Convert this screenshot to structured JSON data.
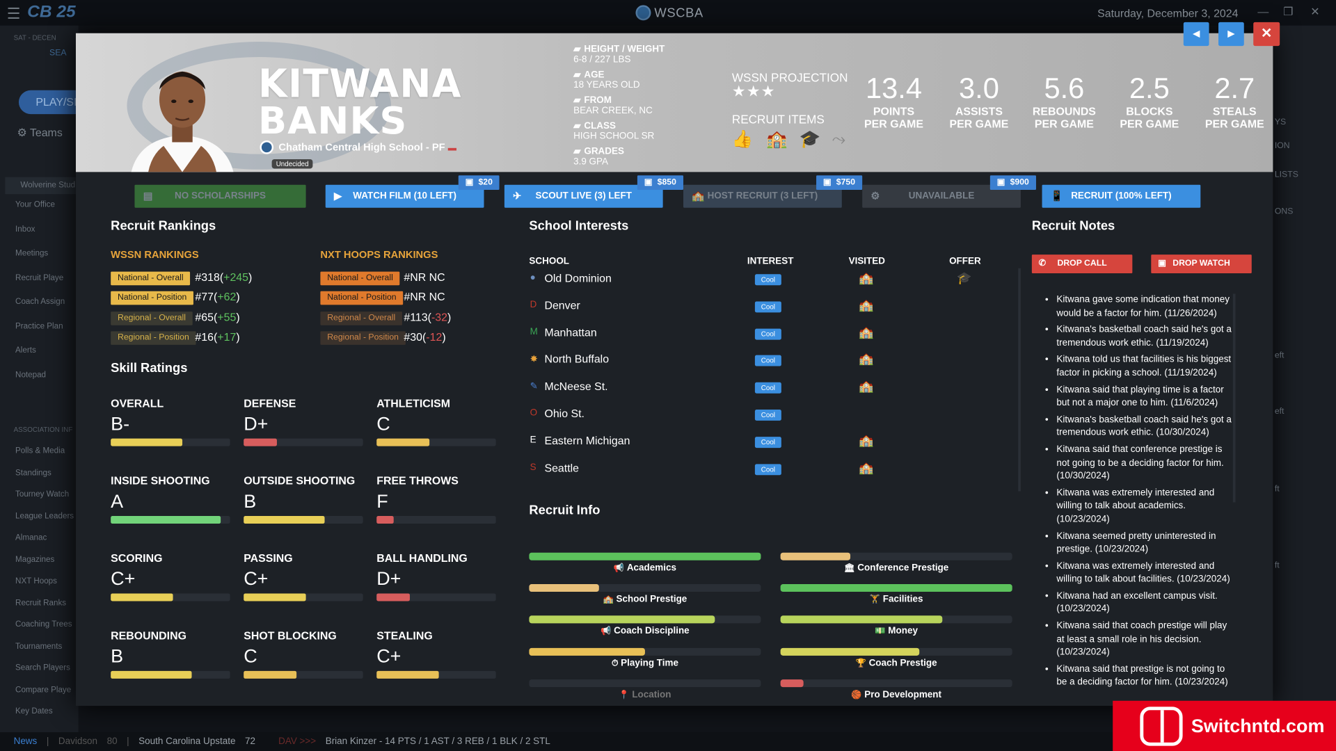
{
  "window": {
    "title": "WSCBA",
    "date": "Saturday, December 3, 2024",
    "game_logo": "25"
  },
  "sidebar": {
    "play_label": "PLAY/SI",
    "teams_label": "Teams",
    "team_name": "Wolverine Stud",
    "date_line": "SAT - DECEN",
    "search_line": "SEA",
    "items": [
      "Your Office",
      "Inbox",
      "Meetings",
      "Recruit Playe",
      "Coach Assign",
      "Practice Plan",
      "Alerts",
      "Notepad"
    ],
    "section_title": "ASSOCIATION INF",
    "assoc_items": [
      "Polls & Media",
      "Standings",
      "Tourney Watch",
      "League Leaders",
      "Almanac",
      "Magazines",
      "NXT Hoops",
      "Recruit Ranks",
      "Coaching Trees",
      "Tournaments",
      "Search Players",
      "Compare Playe",
      "Key Dates"
    ]
  },
  "right_fragments": [
    "YS",
    "ION",
    "LISTS",
    "ONS",
    "eft",
    "eft",
    "ft",
    "ft"
  ],
  "player": {
    "first_name": "KITWANA",
    "last_name": "BANKS",
    "school_line": "Chatham Central High School - PF",
    "status": "Undecided",
    "bio": [
      {
        "label": "HEIGHT / WEIGHT",
        "value": "6-8 / 227 LBS",
        "icon": "ruler-icon"
      },
      {
        "label": "AGE",
        "value": "18 YEARS OLD",
        "icon": "calendar-icon"
      },
      {
        "label": "FROM",
        "value": "BEAR CREEK, NC",
        "icon": "location-pin-icon"
      },
      {
        "label": "CLASS",
        "value": "HIGH SCHOOL SR",
        "icon": "school-icon"
      },
      {
        "label": "GRADES",
        "value": "3.9 GPA",
        "icon": "grades-icon"
      }
    ],
    "projection_label": "WSSN PROJECTION",
    "projection_stars": 3,
    "recruit_items_label": "RECRUIT ITEMS",
    "stats": [
      {
        "value": "13.4",
        "line1": "POINTS",
        "line2": "PER GAME"
      },
      {
        "value": "3.0",
        "line1": "ASSISTS",
        "line2": "PER GAME"
      },
      {
        "value": "5.6",
        "line1": "REBOUNDS",
        "line2": "PER GAME"
      },
      {
        "value": "2.5",
        "line1": "BLOCKS",
        "line2": "PER GAME"
      },
      {
        "value": "2.7",
        "line1": "STEALS",
        "line2": "PER GAME"
      }
    ]
  },
  "actions": [
    {
      "label": "NO SCHOLARSHIPS",
      "price": "",
      "enabled": false,
      "color": "#3a7a3a"
    },
    {
      "label": "WATCH FILM (10 LEFT)",
      "price": "$20",
      "enabled": true,
      "color": "#3b8fe0"
    },
    {
      "label": "SCOUT LIVE (3) LEFT",
      "price": "$850",
      "enabled": true,
      "color": "#3b8fe0"
    },
    {
      "label": "HOST RECRUIT (3 LEFT)",
      "price": "$750",
      "enabled": false,
      "color": "#3b4a5c"
    },
    {
      "label": "UNAVAILABLE",
      "price": "$900",
      "enabled": false,
      "color": "#3a3f46"
    },
    {
      "label": "RECRUIT (100% LEFT)",
      "price": "",
      "enabled": true,
      "color": "#3b8fe0"
    }
  ],
  "rankings": {
    "title": "Recruit Rankings",
    "wssn_title": "WSSN RANKINGS",
    "nxt_title": "NXT HOOPS RANKINGS",
    "wssn": [
      {
        "label": "National - Overall",
        "value": "#318",
        "delta": "+245",
        "sign": "pos"
      },
      {
        "label": "National - Position",
        "value": "#77",
        "delta": "+62",
        "sign": "pos"
      },
      {
        "label": "Regional - Overall",
        "value": "#65",
        "delta": "+55",
        "sign": "pos"
      },
      {
        "label": "Regional - Position",
        "value": "#16",
        "delta": "+17",
        "sign": "pos"
      }
    ],
    "nxt": [
      {
        "label": "National - Overall",
        "value": "#NR NC",
        "delta": "",
        "sign": ""
      },
      {
        "label": "National - Position",
        "value": "#NR NC",
        "delta": "",
        "sign": ""
      },
      {
        "label": "Regional - Overall",
        "value": "#113",
        "delta": "-32",
        "sign": "neg"
      },
      {
        "label": "Regional - Position",
        "value": "#30",
        "delta": "-12",
        "sign": "neg"
      }
    ]
  },
  "skills": {
    "title": "Skill Ratings",
    "items": [
      {
        "label": "OVERALL",
        "grade": "B-",
        "level": 0.6,
        "color": "#e8cf57"
      },
      {
        "label": "DEFENSE",
        "grade": "D+",
        "level": 0.28,
        "color": "#d75d5d"
      },
      {
        "label": "ATHLETICISM",
        "grade": "C",
        "level": 0.44,
        "color": "#e8c057"
      },
      {
        "label": "INSIDE SHOOTING",
        "grade": "A",
        "level": 0.92,
        "color": "#72d47a"
      },
      {
        "label": "OUTSIDE SHOOTING",
        "grade": "B",
        "level": 0.68,
        "color": "#e8cf57"
      },
      {
        "label": "FREE THROWS",
        "grade": "F",
        "level": 0.14,
        "color": "#d75d5d"
      },
      {
        "label": "SCORING",
        "grade": "C+",
        "level": 0.52,
        "color": "#e8cf57"
      },
      {
        "label": "PASSING",
        "grade": "C+",
        "level": 0.52,
        "color": "#e8cf57"
      },
      {
        "label": "BALL HANDLING",
        "grade": "D+",
        "level": 0.28,
        "color": "#d75d5d"
      },
      {
        "label": "REBOUNDING",
        "grade": "B",
        "level": 0.68,
        "color": "#e8cf57"
      },
      {
        "label": "SHOT BLOCKING",
        "grade": "C",
        "level": 0.44,
        "color": "#e8c057"
      },
      {
        "label": "STEALING",
        "grade": "C+",
        "level": 0.52,
        "color": "#e8c057"
      }
    ]
  },
  "interests": {
    "title": "School Interests",
    "headers": {
      "school": "SCHOOL",
      "interest": "INTEREST",
      "visited": "VISITED",
      "offer": "OFFER"
    },
    "rows": [
      {
        "school": "Old Dominion",
        "interest": "Cool",
        "visited": true,
        "offer": true,
        "logo": "●",
        "logo_color": "#6d8fbf"
      },
      {
        "school": "Denver",
        "interest": "Cool",
        "visited": true,
        "offer": false,
        "logo": "D",
        "logo_color": "#c0392b"
      },
      {
        "school": "Manhattan",
        "interest": "Cool",
        "visited": true,
        "offer": false,
        "logo": "M",
        "logo_color": "#3aa655"
      },
      {
        "school": "North Buffalo",
        "interest": "Cool",
        "visited": true,
        "offer": false,
        "logo": "✸",
        "logo_color": "#e8a23b"
      },
      {
        "school": "McNeese St.",
        "interest": "Cool",
        "visited": true,
        "offer": false,
        "logo": "✎",
        "logo_color": "#4b7fd0"
      },
      {
        "school": "Ohio St.",
        "interest": "Cool",
        "visited": false,
        "offer": false,
        "logo": "O",
        "logo_color": "#c0392b"
      },
      {
        "school": "Eastern Michigan",
        "interest": "Cool",
        "visited": true,
        "offer": false,
        "logo": "E",
        "logo_color": "#ffffff"
      },
      {
        "school": "Seattle",
        "interest": "Cool",
        "visited": true,
        "offer": false,
        "logo": "S",
        "logo_color": "#c0392b"
      }
    ]
  },
  "recruit_info": {
    "title": "Recruit Info",
    "items": [
      {
        "label": "Academics",
        "level": 1.0,
        "color": "#5cc25c",
        "icon": "📢"
      },
      {
        "label": "Conference Prestige",
        "level": 0.3,
        "color": "#e8c07a",
        "icon": "🏛"
      },
      {
        "label": "School Prestige",
        "level": 0.3,
        "color": "#e8c07a",
        "icon": "🏫"
      },
      {
        "label": "Facilities",
        "level": 1.0,
        "color": "#5cc25c",
        "icon": "🏋"
      },
      {
        "label": "Coach Discipline",
        "level": 0.8,
        "color": "#b8d45c",
        "icon": "📢"
      },
      {
        "label": "Money",
        "level": 0.7,
        "color": "#b8d45c",
        "icon": "💵"
      },
      {
        "label": "Playing Time",
        "level": 0.5,
        "color": "#e8c057",
        "icon": "⏱"
      },
      {
        "label": "Coach Prestige",
        "level": 0.6,
        "color": "#d4d45c",
        "icon": "🏆"
      },
      {
        "label": "Location",
        "level": 0.0,
        "color": "#2a2f36",
        "icon": "📍"
      },
      {
        "label": "Pro Development",
        "level": 0.1,
        "color": "#d75d5d",
        "icon": "🏀"
      }
    ]
  },
  "notes": {
    "title": "Recruit Notes",
    "drop_call": "DROP CALL",
    "drop_watch": "DROP WATCH",
    "items": [
      "Kitwana gave some indication that money would be a factor for him. (11/26/2024)",
      "Kitwana's basketball coach said he's got a tremendous work ethic. (11/19/2024)",
      "Kitwana told us that facilities is his biggest factor in picking a school. (11/19/2024)",
      "Kitwana said that playing time is a factor but not a major one to him. (11/6/2024)",
      "Kitwana's basketball coach said he's got a tremendous work ethic. (10/30/2024)",
      "Kitwana said that conference prestige is not going to be a deciding factor for him. (10/30/2024)",
      "Kitwana was extremely interested and willing to talk about academics. (10/23/2024)",
      "Kitwana seemed pretty uninterested in prestige. (10/23/2024)",
      "Kitwana was extremely interested and willing to talk about facilities. (10/23/2024)",
      "Kitwana had an excellent campus visit. (10/23/2024)",
      "Kitwana said that coach prestige will play at least a small role in his decision. (10/23/2024)",
      "Kitwana said that prestige is not going to be a deciding factor for him. (10/23/2024)"
    ]
  },
  "ticker": {
    "news": "News",
    "team1": "Davidson",
    "score1": "80",
    "team2": "South Carolina Upstate",
    "score2": "72",
    "tag": "DAV >>>",
    "line": "Brian Kinzer - 14 PTS / 1 AST / 3 REB / 1 BLK / 2 STL"
  },
  "watermark_site": "Switchntd.com"
}
